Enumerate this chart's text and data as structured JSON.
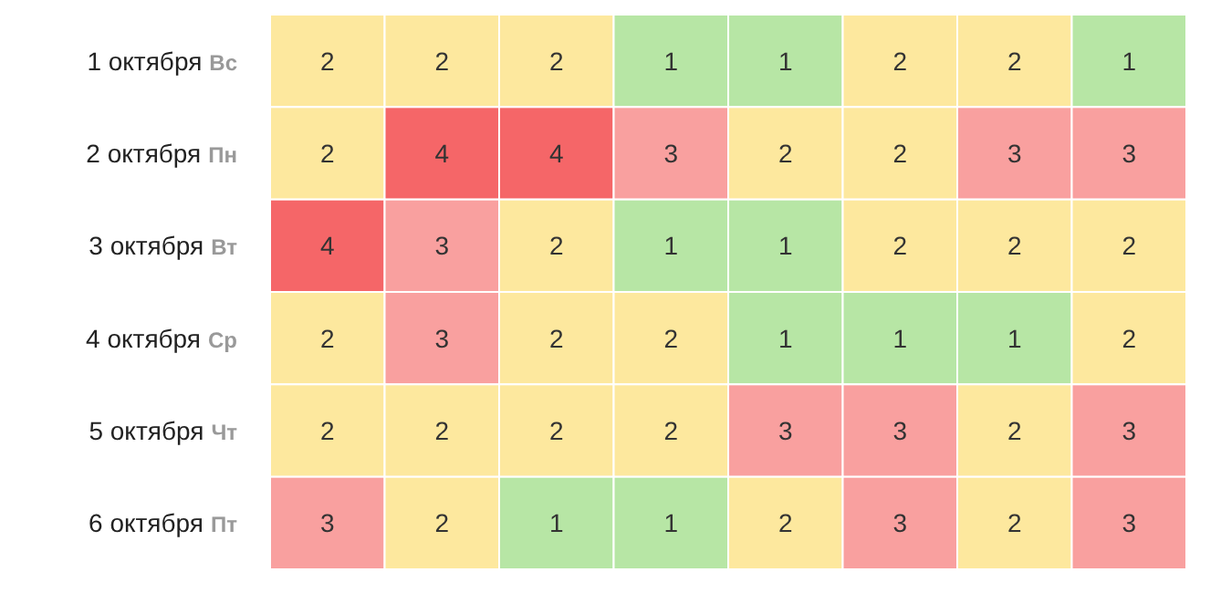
{
  "chart_data": {
    "type": "heatmap",
    "categories": [
      null,
      null,
      null,
      null,
      null,
      null,
      null,
      null
    ],
    "y_categories": [
      "1 октября Вс",
      "2 октября Пн",
      "3 октября Вт",
      "4 октября Ср",
      "5 октября Чт",
      "6 октября Пт"
    ],
    "cells": [
      [
        2,
        2,
        2,
        1,
        1,
        2,
        2,
        1
      ],
      [
        2,
        4,
        4,
        3,
        2,
        2,
        3,
        3
      ],
      [
        4,
        3,
        2,
        1,
        1,
        2,
        2,
        2
      ],
      [
        2,
        3,
        2,
        2,
        1,
        1,
        1,
        2
      ],
      [
        2,
        2,
        2,
        2,
        3,
        3,
        2,
        3
      ],
      [
        3,
        2,
        1,
        1,
        2,
        3,
        2,
        3
      ]
    ],
    "colors": [
      "#b7e6a5",
      "#fde89e",
      "#f9a09f",
      "#f56668"
    ],
    "data_labels": true
  }
}
